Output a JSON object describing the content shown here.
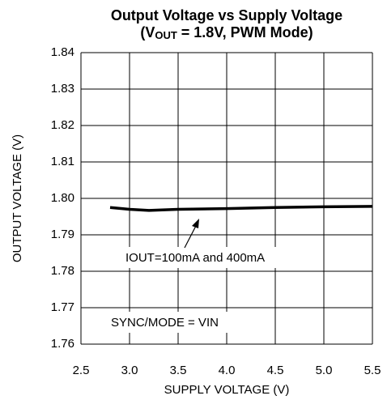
{
  "chart_data": {
    "type": "line",
    "title": "Output Voltage vs Supply Voltage",
    "subtitle_parts": [
      "(V",
      "OUT",
      " = 1.8V, PWM Mode)"
    ],
    "x_label": "SUPPLY VOLTAGE (V)",
    "y_label": "OUTPUT VOLTAGE (V)",
    "annotations": [
      "IOUT=100mA and 400mA",
      "SYNC/MODE = VIN"
    ],
    "xlim": [
      2.5,
      5.5
    ],
    "xticks": [
      2.5,
      {
        "value": 3.0,
        "label": "3.0"
      },
      3.5,
      {
        "value": 4.0,
        "label": "4.0"
      },
      4.5,
      {
        "value": 5.0,
        "label": "5.0"
      },
      5.5
    ],
    "ylim": [
      1.76,
      1.84
    ],
    "yticks": [
      1.76,
      1.77,
      1.78,
      1.79,
      {
        "value": 1.8,
        "label": "1.80"
      },
      1.81,
      1.82,
      1.83,
      1.84
    ],
    "grid": true,
    "series": [
      {
        "name": null,
        "color": "#000000",
        "x": [
          2.8,
          3.0,
          3.2,
          3.5,
          4.0,
          4.5,
          5.0,
          5.5
        ],
        "values": [
          1.7975,
          1.797,
          1.7967,
          1.797,
          1.7972,
          1.7975,
          1.7977,
          1.7978
        ]
      }
    ]
  }
}
